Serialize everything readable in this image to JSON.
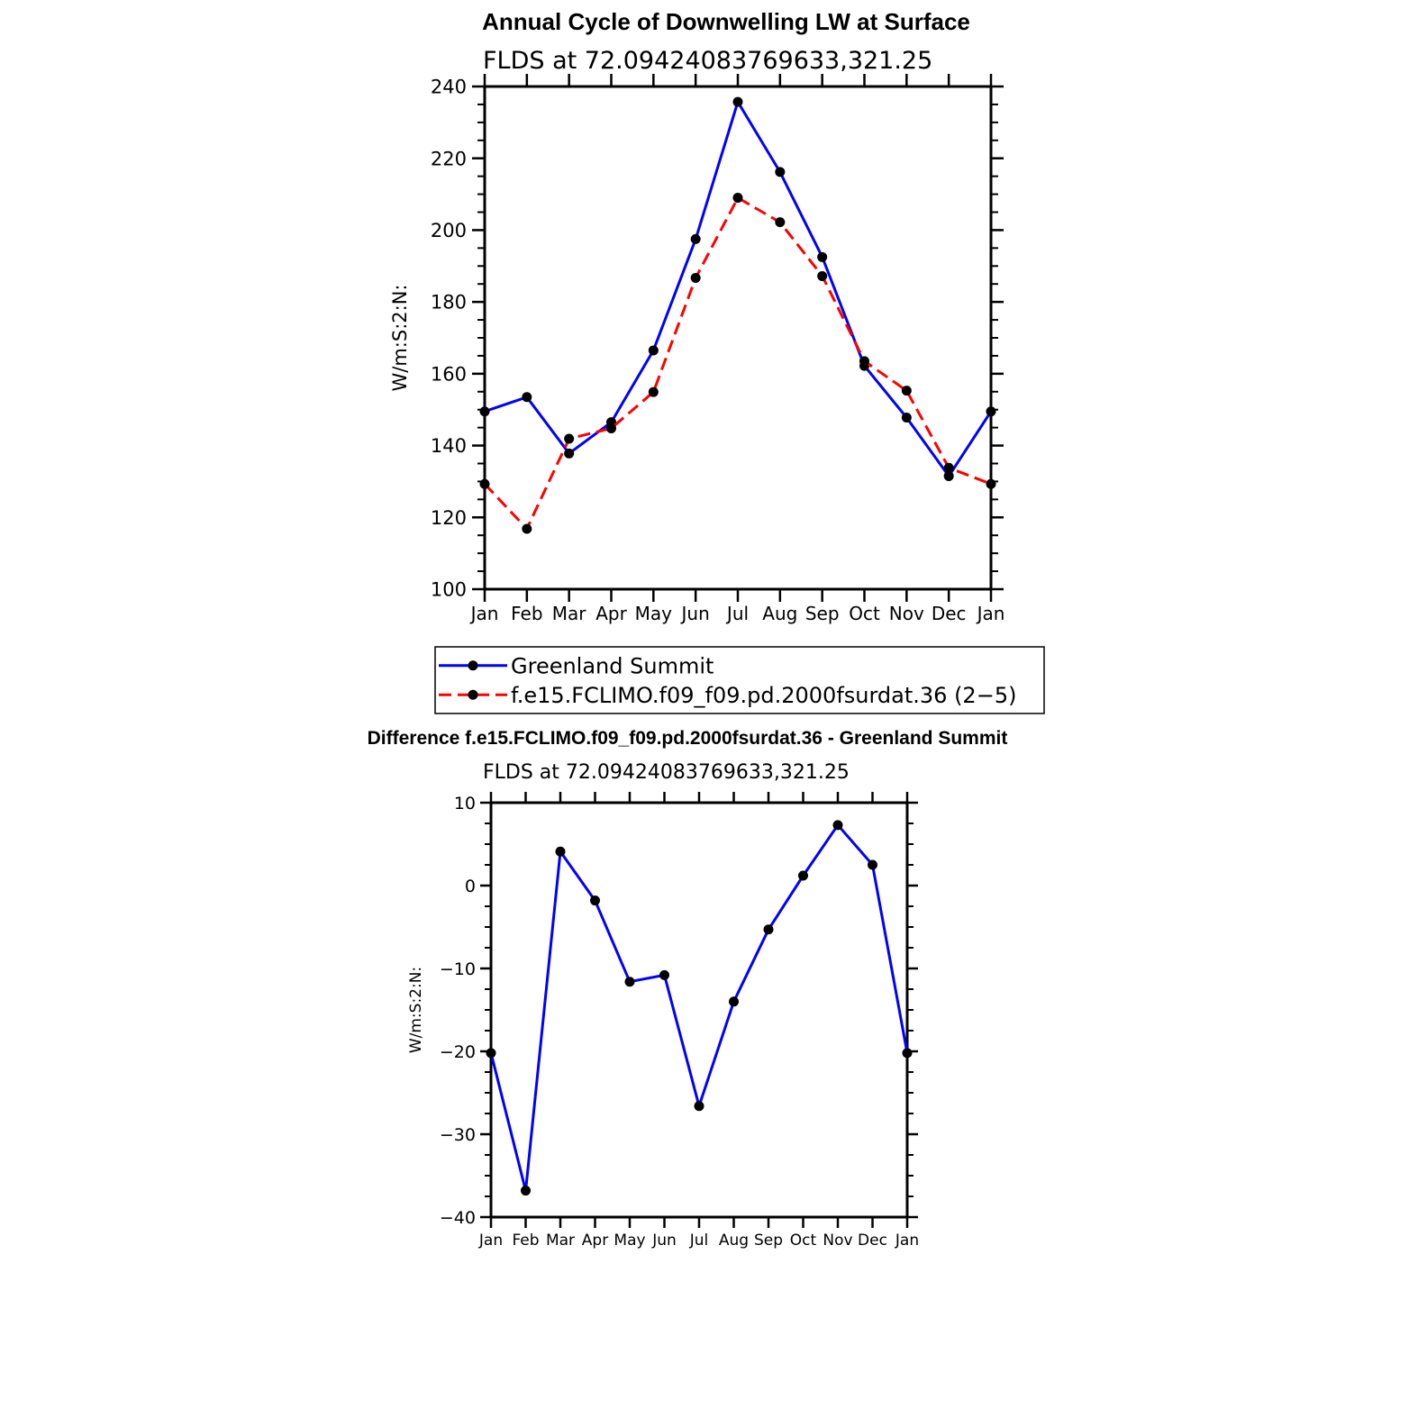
{
  "chart_data": [
    {
      "type": "line",
      "title": "Annual Cycle of Downwelling LW at Surface",
      "subtitle": "FLDS at 72.09424083769633,321.25",
      "ylabel": "W/m:S:2:N:",
      "xlabel": "",
      "categories": [
        "Jan",
        "Feb",
        "Mar",
        "Apr",
        "May",
        "Jun",
        "Jul",
        "Aug",
        "Sep",
        "Oct",
        "Nov",
        "Dec",
        "Jan"
      ],
      "ylim": [
        100,
        240
      ],
      "yticks": [
        100,
        120,
        140,
        160,
        180,
        200,
        220,
        240
      ],
      "ytick_labels": [
        "100",
        "120",
        "140",
        "160",
        "180",
        "200",
        "220",
        "240"
      ],
      "series": [
        {
          "name": "Greenland Summit",
          "color": "#0000ff",
          "dash": "solid",
          "values": [
            149.5,
            153.5,
            137.8,
            146.5,
            166.5,
            197.5,
            235.7,
            216.2,
            192.5,
            162.2,
            147.8,
            131.5,
            149.5
          ]
        },
        {
          "name": "f.e15.FCLIMO.f09_f09.pd.2000fsurdat.36 (2−5)",
          "color": "#ff0000",
          "dash": "dashed",
          "values": [
            129.3,
            116.8,
            141.9,
            144.8,
            154.9,
            186.7,
            209.0,
            202.2,
            187.2,
            163.5,
            155.3,
            133.8,
            129.3
          ]
        }
      ],
      "legend": "below"
    },
    {
      "type": "line",
      "title": "Difference f.e15.FCLIMO.f09_f09.pd.2000fsurdat.36 - Greenland Summit",
      "subtitle": "FLDS at 72.09424083769633,321.25",
      "ylabel": "W/m:S:2:N:",
      "xlabel": "",
      "categories": [
        "Jan",
        "Feb",
        "Mar",
        "Apr",
        "May",
        "Jun",
        "Jul",
        "Aug",
        "Sep",
        "Oct",
        "Nov",
        "Dec",
        "Jan"
      ],
      "ylim": [
        -40,
        10
      ],
      "yticks": [
        -40,
        -30,
        -20,
        -10,
        0,
        10
      ],
      "ytick_labels": [
        "−40",
        "−30",
        "−20",
        "−10",
        "0",
        "10"
      ],
      "series": [
        {
          "name": "Difference",
          "color": "#0000ff",
          "dash": "solid",
          "values": [
            -20.2,
            -36.8,
            4.1,
            -1.8,
            -11.6,
            -10.8,
            -26.6,
            -14.0,
            -5.3,
            1.2,
            7.3,
            2.5,
            -20.2
          ]
        }
      ]
    }
  ]
}
